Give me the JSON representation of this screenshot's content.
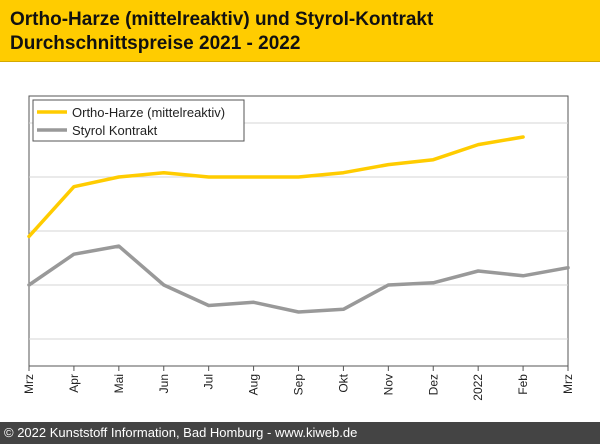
{
  "header": {
    "title_line1": "Ortho-Harze (mittelreaktiv) und Styrol-Kontrakt",
    "title_line2": "Durchschnittspreise 2021 - 2022"
  },
  "footer": {
    "copyright": "© 2022 Kunststoff Information, Bad Homburg - ",
    "link": "www.kiweb.de"
  },
  "chart_data": {
    "type": "line",
    "categories": [
      "Mrz",
      "Apr",
      "Mai",
      "Jun",
      "Jul",
      "Aug",
      "Sep",
      "Okt",
      "Nov",
      "Dez",
      "2022",
      "Feb",
      "Mrz"
    ],
    "series": [
      {
        "name": "Ortho-Harze (mittelreaktiv)",
        "color": "#ffcc00",
        "values": [
          1.9,
          2.82,
          3.0,
          3.08,
          3.0,
          3.0,
          3.0,
          3.08,
          3.23,
          3.32,
          3.6,
          3.74,
          null
        ]
      },
      {
        "name": "Styrol Kontrakt",
        "color": "#999999",
        "values": [
          1.0,
          1.57,
          1.72,
          1.0,
          0.62,
          0.68,
          0.5,
          0.55,
          1.0,
          1.04,
          1.26,
          1.17,
          1.32
        ]
      }
    ],
    "ylim": [
      -0.5,
      4.5
    ],
    "grid": true,
    "legend": "top-left",
    "xlabel": "",
    "ylabel": ""
  }
}
